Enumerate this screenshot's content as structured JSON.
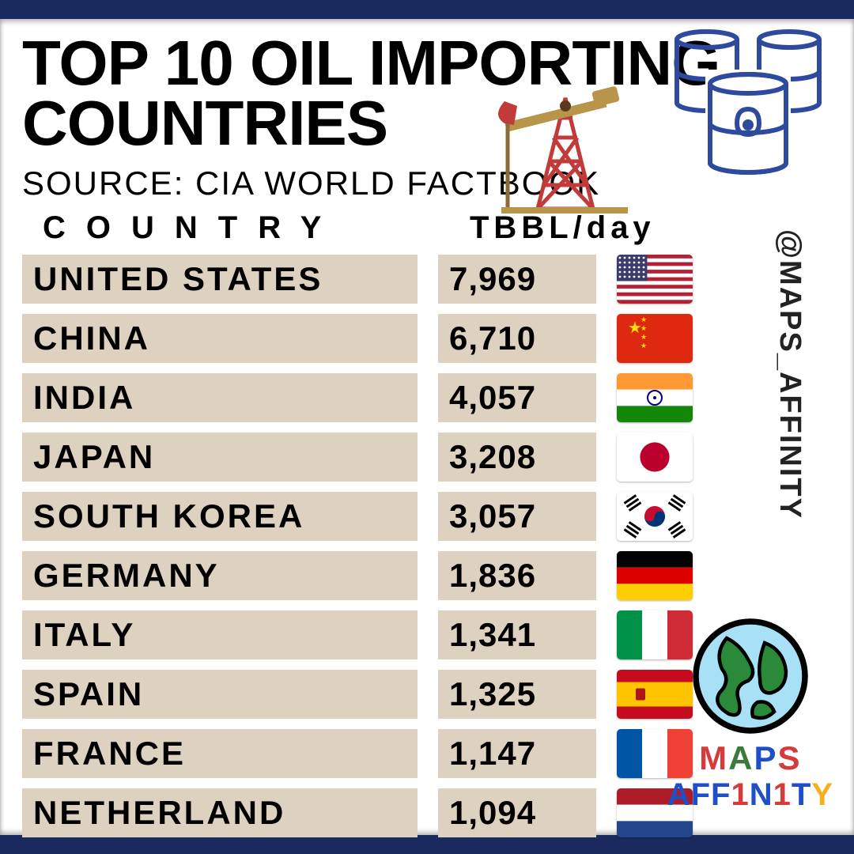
{
  "title": "TOP 10 OIL IMPORTING COUNTRIES",
  "source": "SOURCE: CIA WORLD FACTBOOK",
  "col_country": "COUNTRY",
  "col_value": "TBBL/day",
  "handle": "@MAPS_AFFINITY",
  "logo": {
    "line1_parts": [
      "M",
      "A",
      "P",
      "S"
    ],
    "line1_colors": [
      "#d63a3a",
      "#3a7a3a",
      "#1e4fc9",
      "#d63a3a"
    ],
    "line2_parts": [
      "A",
      "F",
      "F",
      "1",
      "N",
      "1",
      "T",
      "Y"
    ],
    "line2_colors": [
      "#1e4fc9",
      "#1e4fc9",
      "#1e4fc9",
      "#d63a3a",
      "#1e4fc9",
      "#d63a3a",
      "#1e4fc9",
      "#f5b020"
    ]
  },
  "colors": {
    "border": "#1a2a5e",
    "row_bg": "#ddd1bf",
    "barrel_stroke": "#2d4a9e"
  },
  "rows": [
    {
      "country": "UNITED STATES",
      "value": "7,969",
      "flag": "us"
    },
    {
      "country": "CHINA",
      "value": "6,710",
      "flag": "cn"
    },
    {
      "country": "INDIA",
      "value": "4,057",
      "flag": "in"
    },
    {
      "country": "JAPAN",
      "value": "3,208",
      "flag": "jp"
    },
    {
      "country": "SOUTH KOREA",
      "value": "3,057",
      "flag": "kr"
    },
    {
      "country": "GERMANY",
      "value": "1,836",
      "flag": "de"
    },
    {
      "country": "ITALY",
      "value": "1,341",
      "flag": "it"
    },
    {
      "country": "SPAIN",
      "value": "1,325",
      "flag": "es"
    },
    {
      "country": "FRANCE",
      "value": "1,147",
      "flag": "fr"
    },
    {
      "country": "NETHERLAND",
      "value": "1,094",
      "flag": "nl"
    }
  ],
  "flags": {
    "us": {
      "type": "us"
    },
    "cn": {
      "type": "cn"
    },
    "in": {
      "type": "tricolor-h",
      "c": [
        "#ff9933",
        "#ffffff",
        "#138808"
      ],
      "extra": "chakra"
    },
    "jp": {
      "type": "jp"
    },
    "kr": {
      "type": "kr"
    },
    "de": {
      "type": "tricolor-h",
      "c": [
        "#000000",
        "#dd0000",
        "#ffce00"
      ]
    },
    "it": {
      "type": "tricolor-v",
      "c": [
        "#009246",
        "#ffffff",
        "#ce2b37"
      ]
    },
    "es": {
      "type": "es"
    },
    "fr": {
      "type": "tricolor-v",
      "c": [
        "#0055a4",
        "#ffffff",
        "#ef4135"
      ]
    },
    "nl": {
      "type": "tricolor-h",
      "c": [
        "#ae1c28",
        "#ffffff",
        "#21468b"
      ]
    }
  }
}
